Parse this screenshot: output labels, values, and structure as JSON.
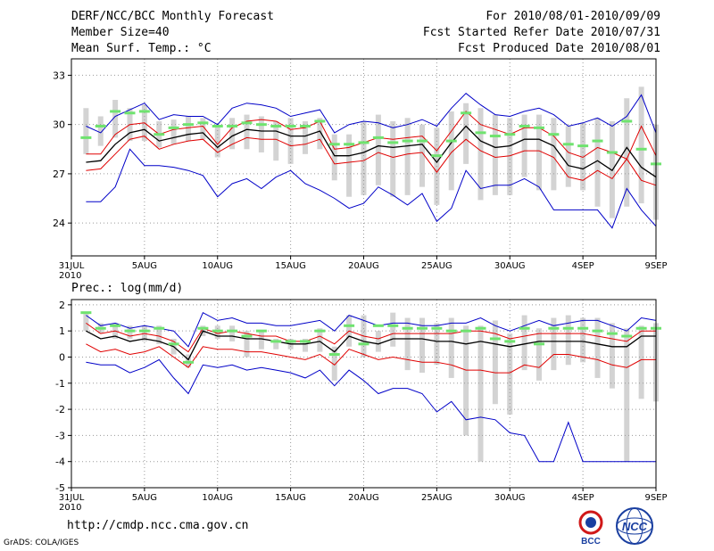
{
  "header": {
    "title": "DERF/NCC/BCC Monthly Forecast",
    "member_size": "Member Size=40",
    "panel1_var": "Mean Surf. Temp.: °C",
    "fcst_period": "For 2010/08/01-2010/09/09",
    "fcst_started": "Fcst Started Refer Date 2010/07/31",
    "fcst_produced": "Fcst Produced Date 2010/08/01"
  },
  "footer": {
    "url": "http://cmdp.ncc.cma.gov.cn",
    "credit": "GrADS: COLA/IGES",
    "logo1_text": "BCC",
    "logo2_text": "NCC"
  },
  "colors": {
    "obs_bar": "#d3d3d3",
    "mean": "#000000",
    "std": "#e00000",
    "range": "#0000c8",
    "obs_mark": "#6fe36f",
    "grid": "#9a9a9a"
  },
  "chart_data": [
    {
      "type": "line",
      "title": "Mean Surf. Temp.: °C",
      "ylim": [
        22,
        34
      ],
      "yticks": [
        24,
        27,
        30,
        33
      ],
      "x_days": [
        1,
        2,
        3,
        4,
        5,
        6,
        7,
        8,
        9,
        10,
        11,
        12,
        13,
        14,
        15,
        16,
        17,
        18,
        19,
        20,
        21,
        22,
        23,
        24,
        25,
        26,
        27,
        28,
        29,
        30,
        31,
        32,
        33,
        34,
        35,
        36,
        37,
        38,
        39,
        40
      ],
      "xtick_days": [
        0,
        5,
        10,
        15,
        20,
        25,
        30,
        35,
        40
      ],
      "xtick_labels": [
        "31JUL",
        "5AUG",
        "10AUG",
        "15AUG",
        "20AUG",
        "25AUG",
        "30AUG",
        "4SEP",
        "9SEP"
      ],
      "xtick_sublabel": "2010",
      "series": [
        {
          "name": "ensemble max",
          "role": "range",
          "values": [
            29.9,
            29.5,
            30.5,
            30.9,
            31.3,
            30.3,
            30.6,
            30.5,
            30.5,
            30.0,
            31.0,
            31.3,
            31.2,
            31.0,
            30.5,
            30.7,
            30.9,
            29.5,
            30.0,
            30.2,
            30.1,
            29.8,
            30.0,
            30.3,
            29.9,
            31.0,
            31.9,
            31.2,
            30.6,
            30.5,
            30.8,
            31.0,
            30.6,
            29.9,
            30.1,
            30.4,
            29.9,
            30.5,
            31.8,
            29.5
          ]
        },
        {
          "name": "mean + std",
          "role": "std",
          "values": [
            28.2,
            28.2,
            29.4,
            30.0,
            30.1,
            29.4,
            29.7,
            29.8,
            29.9,
            28.8,
            29.8,
            30.2,
            30.3,
            30.2,
            29.7,
            29.8,
            30.2,
            28.5,
            28.6,
            28.9,
            29.2,
            29.1,
            29.2,
            29.3,
            28.4,
            29.6,
            30.8,
            30.0,
            29.7,
            29.4,
            29.8,
            29.8,
            29.3,
            28.3,
            28.0,
            28.6,
            28.3,
            27.9,
            29.9,
            28.1
          ]
        },
        {
          "name": "ensemble mean",
          "role": "mean",
          "values": [
            27.7,
            27.8,
            28.8,
            29.5,
            29.7,
            29.0,
            29.2,
            29.4,
            29.5,
            28.6,
            29.3,
            29.7,
            29.6,
            29.6,
            29.3,
            29.3,
            29.6,
            28.1,
            28.1,
            28.3,
            28.7,
            28.6,
            28.7,
            28.8,
            27.7,
            28.9,
            29.9,
            29.0,
            28.6,
            28.7,
            29.1,
            29.1,
            28.7,
            27.5,
            27.3,
            27.8,
            27.2,
            28.6,
            27.4,
            26.8
          ]
        },
        {
          "name": "mean - std",
          "role": "std",
          "values": [
            27.2,
            27.3,
            28.2,
            29.1,
            29.3,
            28.5,
            28.8,
            29.0,
            29.1,
            28.3,
            28.8,
            29.2,
            29.1,
            29.1,
            28.7,
            28.8,
            29.1,
            27.6,
            27.7,
            27.8,
            28.3,
            28.0,
            28.2,
            28.3,
            27.1,
            28.3,
            29.1,
            28.4,
            28.0,
            28.1,
            28.4,
            28.4,
            28.0,
            26.8,
            26.6,
            27.2,
            26.7,
            27.9,
            26.6,
            26.3
          ]
        },
        {
          "name": "ensemble min",
          "role": "range",
          "values": [
            25.3,
            25.3,
            26.2,
            28.5,
            27.5,
            27.5,
            27.4,
            27.2,
            26.9,
            25.6,
            26.4,
            26.7,
            26.1,
            26.8,
            27.2,
            26.4,
            26.0,
            25.5,
            24.9,
            25.2,
            26.2,
            25.7,
            25.1,
            25.8,
            24.1,
            24.9,
            27.2,
            26.1,
            26.3,
            26.3,
            26.7,
            26.2,
            24.8,
            24.8,
            24.8,
            24.8,
            23.7,
            26.1,
            24.8,
            23.8
          ]
        }
      ],
      "obs_bars": [
        {
          "low": 28.2,
          "high": 31.0
        },
        {
          "low": 28.7,
          "high": 30.5
        },
        {
          "low": 29.2,
          "high": 31.5
        },
        {
          "low": 29.0,
          "high": 31.0
        },
        {
          "low": 29.0,
          "high": 31.2
        },
        {
          "low": 28.6,
          "high": 30.2
        },
        {
          "low": 28.8,
          "high": 30.3
        },
        {
          "low": 29.0,
          "high": 30.5
        },
        {
          "low": 29.1,
          "high": 30.4
        },
        {
          "low": 28.0,
          "high": 30.0
        },
        {
          "low": 28.5,
          "high": 30.4
        },
        {
          "low": 28.5,
          "high": 30.6
        },
        {
          "low": 28.3,
          "high": 30.5
        },
        {
          "low": 27.8,
          "high": 30.2
        },
        {
          "low": 27.6,
          "high": 30.4
        },
        {
          "low": 28.2,
          "high": 30.2
        },
        {
          "low": 28.5,
          "high": 30.4
        },
        {
          "low": 26.6,
          "high": 29.4
        },
        {
          "low": 25.6,
          "high": 29.4
        },
        {
          "low": 25.7,
          "high": 30.2
        },
        {
          "low": 26.3,
          "high": 30.6
        },
        {
          "low": 25.6,
          "high": 30.2
        },
        {
          "low": 25.7,
          "high": 30.4
        },
        {
          "low": 26.2,
          "high": 30.0
        },
        {
          "low": 25.1,
          "high": 29.8
        },
        {
          "low": 26.0,
          "high": 30.8
        },
        {
          "low": 27.6,
          "high": 31.3
        },
        {
          "low": 25.4,
          "high": 31.0
        },
        {
          "low": 25.7,
          "high": 30.6
        },
        {
          "low": 25.7,
          "high": 30.4
        },
        {
          "low": 26.8,
          "high": 30.6
        },
        {
          "low": 26.0,
          "high": 30.6
        },
        {
          "low": 26.0,
          "high": 30.4
        },
        {
          "low": 26.2,
          "high": 29.9
        },
        {
          "low": 26.0,
          "high": 30.1
        },
        {
          "low": 25.0,
          "high": 30.4
        },
        {
          "low": 24.3,
          "high": 30.2
        },
        {
          "low": 25.0,
          "high": 31.6
        },
        {
          "low": 25.2,
          "high": 32.3
        },
        {
          "low": 24.2,
          "high": 30.0
        }
      ],
      "obs_marks": [
        29.2,
        29.9,
        30.8,
        30.7,
        30.8,
        29.4,
        29.8,
        30.0,
        30.1,
        29.9,
        29.9,
        30.1,
        30.0,
        29.9,
        29.9,
        29.9,
        30.2,
        28.8,
        28.8,
        28.9,
        29.2,
        28.9,
        29.0,
        29.0,
        28.1,
        29.0,
        30.7,
        29.5,
        29.3,
        29.4,
        29.9,
        29.8,
        29.4,
        28.8,
        28.7,
        29.0,
        28.3,
        30.2,
        28.5,
        27.6
      ]
    },
    {
      "type": "line",
      "title": "Prec.: log(mm/d)",
      "ylim": [
        -5,
        2.2
      ],
      "yticks": [
        2,
        1,
        0,
        -1,
        -2,
        -3,
        -4,
        -5
      ],
      "x_days": [
        1,
        2,
        3,
        4,
        5,
        6,
        7,
        8,
        9,
        10,
        11,
        12,
        13,
        14,
        15,
        16,
        17,
        18,
        19,
        20,
        21,
        22,
        23,
        24,
        25,
        26,
        27,
        28,
        29,
        30,
        31,
        32,
        33,
        34,
        35,
        36,
        37,
        38,
        39,
        40
      ],
      "xtick_days": [
        0,
        5,
        10,
        15,
        20,
        25,
        30,
        35,
        40
      ],
      "xtick_labels": [
        "31JUL",
        "5AUG",
        "10AUG",
        "15AUG",
        "20AUG",
        "25AUG",
        "30AUG",
        "4SEP",
        "9SEP"
      ],
      "xtick_sublabel": "2010",
      "series": [
        {
          "name": "ensemble max",
          "role": "range",
          "values": [
            1.6,
            1.2,
            1.3,
            1.1,
            1.2,
            1.1,
            1.0,
            0.4,
            1.7,
            1.4,
            1.5,
            1.3,
            1.3,
            1.2,
            1.2,
            1.3,
            1.4,
            1.0,
            1.6,
            1.4,
            1.2,
            1.3,
            1.3,
            1.2,
            1.2,
            1.3,
            1.3,
            1.5,
            1.2,
            1.0,
            1.2,
            1.4,
            1.2,
            1.3,
            1.4,
            1.4,
            1.2,
            1.0,
            1.5,
            1.4
          ]
        },
        {
          "name": "mean + std",
          "role": "std",
          "values": [
            1.3,
            0.9,
            1.0,
            0.8,
            0.9,
            0.8,
            0.6,
            0.2,
            1.1,
            0.9,
            1.0,
            0.9,
            0.8,
            0.8,
            0.6,
            0.6,
            0.8,
            0.5,
            1.0,
            0.8,
            0.7,
            0.9,
            0.9,
            0.9,
            0.9,
            0.9,
            1.0,
            1.0,
            0.9,
            0.7,
            0.8,
            0.9,
            0.9,
            0.9,
            0.9,
            0.8,
            0.7,
            0.6,
            1.0,
            1.0
          ]
        },
        {
          "name": "ensemble mean",
          "role": "mean",
          "values": [
            1.0,
            0.7,
            0.8,
            0.6,
            0.7,
            0.6,
            0.4,
            -0.1,
            1.0,
            0.8,
            0.8,
            0.7,
            0.7,
            0.6,
            0.5,
            0.5,
            0.6,
            0.2,
            0.8,
            0.6,
            0.5,
            0.7,
            0.7,
            0.7,
            0.6,
            0.6,
            0.5,
            0.6,
            0.5,
            0.4,
            0.5,
            0.6,
            0.6,
            0.6,
            0.6,
            0.5,
            0.4,
            0.4,
            0.8,
            0.8
          ]
        },
        {
          "name": "mean - std",
          "role": "std",
          "values": [
            0.5,
            0.2,
            0.3,
            0.1,
            0.2,
            0.4,
            0.0,
            -0.4,
            0.4,
            0.3,
            0.3,
            0.2,
            0.2,
            0.1,
            0.0,
            -0.1,
            0.1,
            -0.3,
            0.3,
            0.1,
            -0.1,
            0.0,
            -0.1,
            -0.2,
            -0.2,
            -0.3,
            -0.5,
            -0.5,
            -0.6,
            -0.6,
            -0.3,
            -0.4,
            0.1,
            0.1,
            0.0,
            -0.1,
            -0.3,
            -0.4,
            -0.1,
            -0.1
          ]
        },
        {
          "name": "ensemble min",
          "role": "range",
          "values": [
            -0.2,
            -0.3,
            -0.3,
            -0.6,
            -0.4,
            -0.1,
            -0.8,
            -1.4,
            -0.3,
            -0.4,
            -0.3,
            -0.5,
            -0.4,
            -0.5,
            -0.6,
            -0.8,
            -0.5,
            -1.1,
            -0.5,
            -0.9,
            -1.4,
            -1.2,
            -1.2,
            -1.4,
            -2.1,
            -1.7,
            -2.4,
            -2.3,
            -2.4,
            -2.9,
            -3.0,
            -4.0,
            -4.0,
            -2.5,
            -4.0,
            -4.0,
            -4.0,
            -4.0,
            -4.0,
            -4.0
          ]
        }
      ],
      "obs_bars": [
        {
          "low": 1.0,
          "high": 1.7
        },
        {
          "low": 0.9,
          "high": 1.3
        },
        {
          "low": 0.7,
          "high": 1.3
        },
        {
          "low": 0.7,
          "high": 1.2
        },
        {
          "low": 0.6,
          "high": 1.2
        },
        {
          "low": 0.5,
          "high": 1.2
        },
        {
          "low": 0.1,
          "high": 0.7
        },
        {
          "low": -0.4,
          "high": 0.1
        },
        {
          "low": 0.8,
          "high": 1.2
        },
        {
          "low": 0.7,
          "high": 1.2
        },
        {
          "low": 0.6,
          "high": 1.2
        },
        {
          "low": 0.0,
          "high": 1.0
        },
        {
          "low": 0.3,
          "high": 1.0
        },
        {
          "low": 0.3,
          "high": 0.7
        },
        {
          "low": 0.3,
          "high": 0.7
        },
        {
          "low": 0.2,
          "high": 0.7
        },
        {
          "low": 0.2,
          "high": 1.1
        },
        {
          "low": -0.9,
          "high": 0.4
        },
        {
          "low": 0.4,
          "high": 1.6
        },
        {
          "low": 0.0,
          "high": 1.6
        },
        {
          "low": 0.2,
          "high": 1.0
        },
        {
          "low": 0.4,
          "high": 1.7
        },
        {
          "low": -0.5,
          "high": 1.5
        },
        {
          "low": -0.6,
          "high": 1.5
        },
        {
          "low": -0.3,
          "high": 1.3
        },
        {
          "low": -0.8,
          "high": 1.5
        },
        {
          "low": -3.0,
          "high": 1.2
        },
        {
          "low": -4.0,
          "high": 1.2
        },
        {
          "low": -1.8,
          "high": 1.4
        },
        {
          "low": -2.2,
          "high": 0.9
        },
        {
          "low": -0.5,
          "high": 1.6
        },
        {
          "low": -0.9,
          "high": 1.1
        },
        {
          "low": -0.5,
          "high": 1.5
        },
        {
          "low": -0.3,
          "high": 1.6
        },
        {
          "low": -0.2,
          "high": 1.5
        },
        {
          "low": -0.8,
          "high": 1.5
        },
        {
          "low": -1.2,
          "high": 1.3
        },
        {
          "low": -4.0,
          "high": 1.1
        },
        {
          "low": -1.6,
          "high": 1.2
        },
        {
          "low": -1.7,
          "high": 1.3
        }
      ],
      "obs_marks": [
        1.7,
        1.1,
        1.2,
        1.0,
        1.0,
        1.1,
        0.5,
        -0.2,
        1.1,
        1.0,
        1.0,
        0.8,
        1.0,
        0.6,
        0.6,
        0.6,
        1.0,
        0.1,
        1.2,
        0.5,
        1.2,
        1.2,
        1.1,
        1.1,
        1.1,
        1.0,
        1.0,
        1.1,
        0.7,
        0.6,
        1.1,
        0.5,
        1.1,
        1.1,
        1.1,
        1.0,
        0.9,
        0.8,
        1.1,
        1.1
      ]
    }
  ]
}
